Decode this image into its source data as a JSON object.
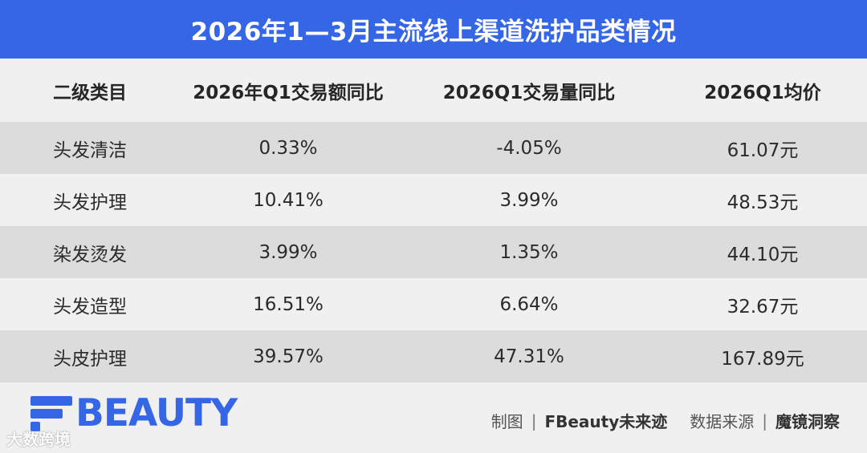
{
  "header": {
    "title": "2026年1—3月主流线上渠道洗护品类情况"
  },
  "table": {
    "columns": [
      "二级类目",
      "2026年Q1交易额同比",
      "2026Q1交易量同比",
      "2026Q1均价"
    ],
    "rows": [
      [
        "头发清洁",
        "0.33%",
        "-4.05%",
        "61.07元"
      ],
      [
        "头发护理",
        "10.41%",
        "3.99%",
        "48.53元"
      ],
      [
        "染发烫发",
        "3.99%",
        "1.35%",
        "44.10元"
      ],
      [
        "头发造型",
        "16.51%",
        "6.64%",
        "32.67元"
      ],
      [
        "头皮护理",
        "39.57%",
        "47.31%",
        "167.89元"
      ]
    ]
  },
  "footer": {
    "logo_text": "BEAUTY",
    "watermark": "大数跨境",
    "credit_label_1": "制图",
    "credit_value_1": "FBeauty未来迹",
    "credit_label_2": "数据来源",
    "credit_value_2": "魔镜洞察",
    "separator": "|"
  },
  "colors": {
    "accent": "#3566e6",
    "row_shade": "#dcdcdc",
    "background": "#f0f0f0"
  }
}
